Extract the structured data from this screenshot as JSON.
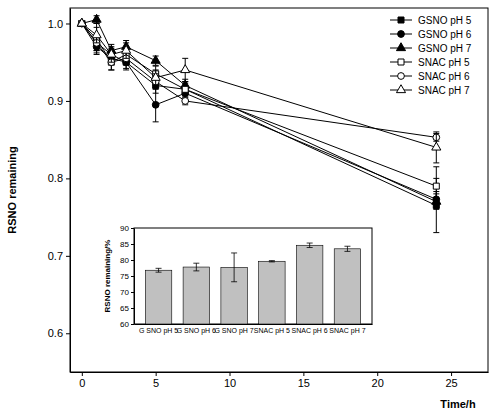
{
  "chart_data": [
    {
      "type": "line",
      "xlabel": "Time/h",
      "ylabel": "RSNO remaining",
      "x": [
        0,
        1,
        2,
        3,
        5,
        7,
        24
      ],
      "xlim": [
        -0.8,
        27.5
      ],
      "xticks": [
        0,
        5,
        10,
        15,
        20,
        25
      ],
      "ylim": [
        0.55,
        1.02
      ],
      "yticks": [
        0.6,
        0.7,
        0.8,
        0.9,
        {
          "value": 1,
          "label": "1.0"
        }
      ],
      "legend": "upper right",
      "grid": false,
      "series": [
        {
          "name": "GSNO pH 5",
          "color": "#000000",
          "marker": "square",
          "line_style": "solid",
          "values": [
            1.0,
            0.975,
            0.96,
            0.95,
            0.92,
            0.915,
            0.765
          ],
          "errors": [
            0.0,
            0.01,
            0.008,
            0.01,
            0.01,
            0.008,
            0.035
          ]
        },
        {
          "name": "GSNO pH 6",
          "color": "#000000",
          "marker": "circle",
          "line_style": "solid",
          "values": [
            1.0,
            0.97,
            0.955,
            0.95,
            0.895,
            0.91,
            0.773
          ],
          "errors": [
            0.0,
            0.008,
            0.008,
            0.008,
            0.022,
            0.008,
            0.01
          ]
        },
        {
          "name": "GSNO pH 7",
          "color": "#000000",
          "marker": "triangle",
          "line_style": "solid",
          "values": [
            1.0,
            1.005,
            0.965,
            0.97,
            0.952,
            0.92,
            0.77
          ],
          "errors": [
            0.0,
            0.005,
            0.008,
            0.008,
            0.006,
            0.008,
            0.01
          ]
        },
        {
          "name": "SNAC pH 5",
          "color": "#000000",
          "marker": "square-open",
          "line_style": "solid",
          "values": [
            1.0,
            0.98,
            0.95,
            0.96,
            0.935,
            0.915,
            0.79
          ],
          "errors": [
            0.0,
            0.02,
            0.01,
            0.008,
            0.01,
            0.01,
            0.025
          ]
        },
        {
          "name": "SNAC pH 6",
          "color": "#000000",
          "marker": "circle-open",
          "line_style": "solid",
          "values": [
            1.0,
            0.975,
            0.95,
            0.955,
            0.925,
            0.9,
            0.853
          ],
          "errors": [
            0.0,
            0.01,
            0.01,
            0.008,
            0.01,
            0.005,
            0.005
          ]
        },
        {
          "name": "SNAC pH 7",
          "color": "#000000",
          "marker": "triangle-open",
          "line_style": "solid",
          "values": [
            1.0,
            0.985,
            0.96,
            0.965,
            0.93,
            0.94,
            0.84
          ],
          "errors": [
            0.0,
            0.01,
            0.01,
            0.01,
            0.01,
            0.015,
            0.02
          ]
        }
      ]
    },
    {
      "type": "bar",
      "ylabel": "RSNO remaining/%",
      "categories": [
        "G SNO pH 5",
        "G SNO pH 6",
        "G SNO pH 7",
        "SNAC pH 5",
        "SNAC pH 6",
        "SNAC pH 7"
      ],
      "values": [
        76.8,
        77.8,
        77.7,
        79.6,
        84.6,
        83.5
      ],
      "errors": [
        0.6,
        1.2,
        4.5,
        0.2,
        0.7,
        0.8
      ],
      "color": "#c0c0c0",
      "ylim": [
        60,
        90
      ],
      "yticks": [
        60,
        65,
        70,
        75,
        80,
        85,
        90
      ],
      "grid": false
    }
  ]
}
